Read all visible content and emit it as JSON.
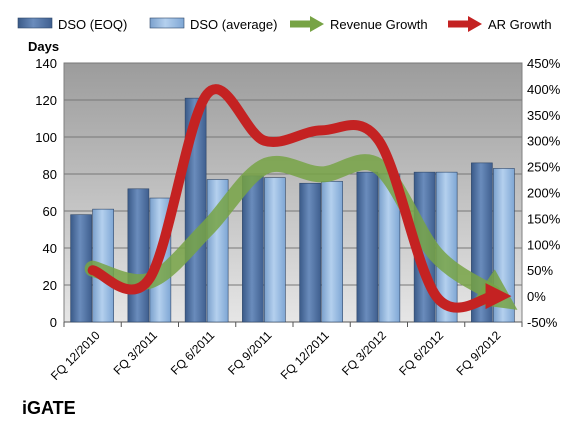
{
  "chart_data": {
    "type": "bar",
    "categories": [
      "FQ 12/2010",
      "FQ 3/2011",
      "FQ 6/2011",
      "FQ 9/2011",
      "FQ 12/2011",
      "FQ 3/2012",
      "FQ 6/2012",
      "FQ 9/2012"
    ],
    "series": [
      {
        "name": "DSO (EOQ)",
        "type": "bar",
        "axis": "left",
        "color": "#4a6a9a",
        "values": [
          58,
          72,
          121,
          79,
          75,
          81,
          81,
          86
        ]
      },
      {
        "name": "DSO (average)",
        "type": "bar",
        "axis": "left",
        "color": "#8fb4de",
        "values": [
          61,
          67,
          77,
          78,
          76,
          80,
          81,
          83
        ]
      },
      {
        "name": "Revenue Growth",
        "type": "line",
        "axis": "right",
        "color": "#77a345",
        "values": [
          53,
          30,
          130,
          250,
          235,
          250,
          80,
          5
        ]
      },
      {
        "name": "AR Growth",
        "type": "line",
        "axis": "right",
        "color": "#c42222",
        "values": [
          50,
          35,
          390,
          300,
          320,
          300,
          0,
          0
        ]
      }
    ],
    "ylabel": "Days",
    "ylim": [
      0,
      140
    ],
    "yticks": [
      0,
      20,
      40,
      60,
      80,
      100,
      120,
      140
    ],
    "y2lim": [
      -50,
      450
    ],
    "y2ticks": [
      "-50%",
      "0%",
      "50%",
      "100%",
      "150%",
      "200%",
      "250%",
      "300%",
      "350%",
      "400%",
      "450%"
    ],
    "legend_position": "top",
    "grid": true
  },
  "brand": "iGATE"
}
